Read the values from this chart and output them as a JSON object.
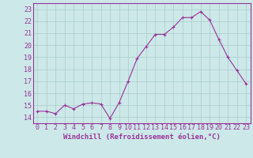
{
  "x": [
    0,
    1,
    2,
    3,
    4,
    5,
    6,
    7,
    8,
    9,
    10,
    11,
    12,
    13,
    14,
    15,
    16,
    17,
    18,
    19,
    20,
    21,
    22,
    23
  ],
  "y": [
    14.5,
    14.5,
    14.3,
    15.0,
    14.7,
    15.1,
    15.2,
    15.1,
    13.9,
    15.2,
    17.0,
    18.9,
    19.9,
    20.9,
    20.9,
    21.5,
    22.3,
    22.3,
    22.8,
    22.1,
    20.5,
    19.0,
    17.9,
    16.8
  ],
  "line_color": "#993399",
  "marker": "+",
  "marker_size": 3,
  "bg_color": "#cce8e8",
  "grid_color": "#aacccc",
  "xlabel": "Windchill (Refroidissement éolien,°C)",
  "xlabel_fontsize": 6.5,
  "tick_fontsize": 6,
  "ylim": [
    13.5,
    23.5
  ],
  "xlim": [
    -0.5,
    23.5
  ],
  "yticks": [
    14,
    15,
    16,
    17,
    18,
    19,
    20,
    21,
    22,
    23
  ],
  "xticks": [
    0,
    1,
    2,
    3,
    4,
    5,
    6,
    7,
    8,
    9,
    10,
    11,
    12,
    13,
    14,
    15,
    16,
    17,
    18,
    19,
    20,
    21,
    22,
    23
  ],
  "line_width": 0.8
}
